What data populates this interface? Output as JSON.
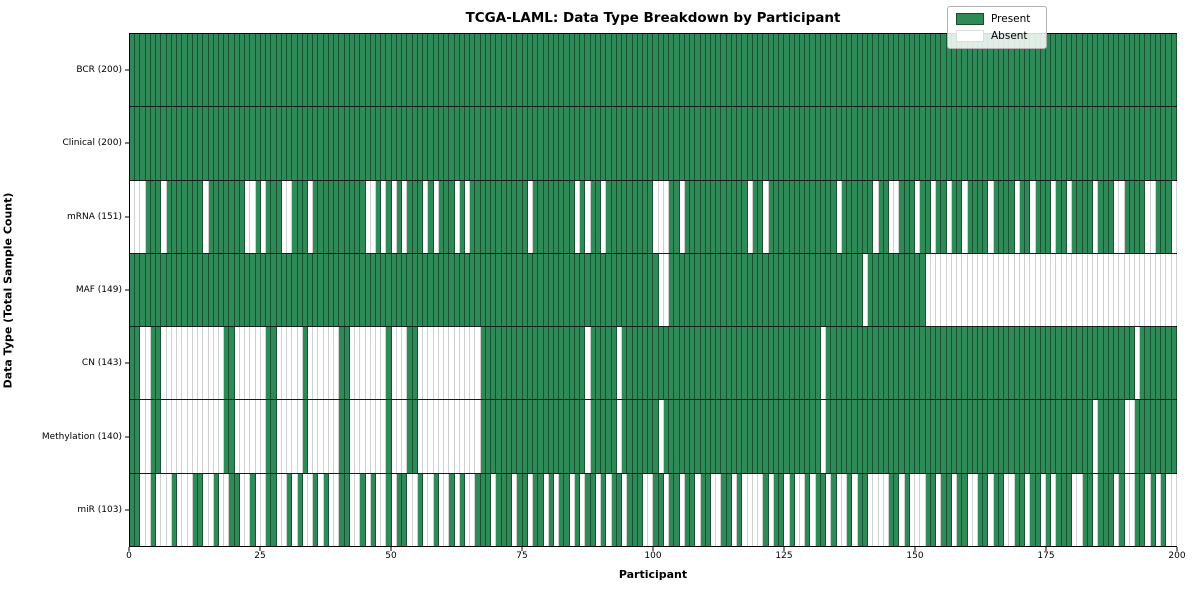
{
  "figure": {
    "title": "TCGA-LAML: Data Type Breakdown by Participant"
  },
  "axes": {
    "xlabel": "Participant",
    "ylabel": "Data Type (Total Sample Count)",
    "x_ticks": [
      "0",
      "25",
      "50",
      "75",
      "100",
      "125",
      "150",
      "175",
      "200"
    ]
  },
  "legend": {
    "present_label": "Present",
    "absent_label": "Absent"
  },
  "colors": {
    "present": "#2e8b57",
    "absent": "#ffffff",
    "row_divider": "#1a1a1a",
    "axis": "#000000",
    "legend_border": "#b3b3b3"
  },
  "chart_data": {
    "type": "heatmap",
    "title": "TCGA-LAML: Data Type Breakdown by Participant",
    "xlabel": "Participant",
    "ylabel": "Data Type (Total Sample Count)",
    "x_range": [
      0,
      200
    ],
    "n_participants": 200,
    "grid": false,
    "legend_position": "upper right",
    "value_meaning": {
      "1": "Present",
      "0": "Absent"
    },
    "rows": [
      {
        "label": "BCR (200)",
        "data_type": "BCR",
        "total_samples": 200,
        "pattern": "11111111111111111111111111111111111111111111111111111111111111111111111111111111111111111111111111111111111111111111111111111111111111111111111111111111111111111111111111111111111111111111111111111111"
      },
      {
        "label": "Clinical (200)",
        "data_type": "Clinical",
        "total_samples": 200,
        "pattern": "11111111111111111111111111111111111111111111111111111111111111111111111111111111111111111111111111111111111111111111111111111111111111111111111111111111111111111111111111111111111111111111111111111111"
      },
      {
        "label": "mRNA (151)",
        "data_type": "mRNA",
        "total_samples": 151,
        "pattern": "00011101111111011111110010111001110111111111100101010111010111010111111111110111111110101101111111110001101111111111110110111111111111101111110110011101101101101111011110110111011011110111001111001110 1"
      },
      {
        "label": "MAF (149)",
        "data_type": "MAF",
        "total_samples": 149,
        "pattern": "11111111111111111111111111111111111111111111111111111111111111111111111111111111111111111111111111111001111111111111111111111111111111111111011111111111000000000000000000000000000000000000000000000000"
      },
      {
        "label": "CN (143)",
        "data_type": "CN",
        "total_samples": 143,
        "pattern": "11001100000000000011000000110000010000001100000001000110000000000001111111111111111111101111101111111111111111111111111111111111111101111111111111111111111111111111111111111111111111111111111101111111"
      },
      {
        "label": "Methylation (140)",
        "data_type": "Methylation",
        "total_samples": 140,
        "pattern": "11001100000000000011000000110000010000001100000001000110000000000001111111111111111111101111101111111011111111111111111111111111111101111111111111111111111111111111111111111111111111110111110011111111"
      },
      {
        "label": "miR (103)",
        "data_type": "miR",
        "total_samples": 103,
        "pattern": "11001000100011001001100100110010100101001100101001011001001001010011101110110110101101011010110111001101101101100110100001011010010110100101100001101000110110110011011001101101011100110111010011010 1"
      }
    ]
  }
}
